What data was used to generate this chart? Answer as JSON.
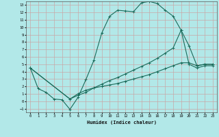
{
  "xlabel": "Humidex (Indice chaleur)",
  "background_color": "#b2e8e8",
  "grid_color": "#c8a8a8",
  "line_color": "#1a6b5a",
  "xlim": [
    -0.5,
    23.5
  ],
  "ylim": [
    -1.5,
    13.5
  ],
  "xticks": [
    0,
    1,
    2,
    3,
    4,
    5,
    6,
    7,
    8,
    9,
    10,
    11,
    12,
    13,
    14,
    15,
    16,
    17,
    18,
    19,
    20,
    21,
    22,
    23
  ],
  "yticks": [
    -1,
    0,
    1,
    2,
    3,
    4,
    5,
    6,
    7,
    8,
    9,
    10,
    11,
    12,
    13
  ],
  "line1_x": [
    0,
    1,
    2,
    3,
    4,
    5,
    6,
    7,
    8,
    9,
    10,
    11,
    12,
    13,
    14,
    15,
    16,
    17,
    18,
    19,
    20,
    21,
    22,
    23
  ],
  "line1_y": [
    4.5,
    1.7,
    1.2,
    0.3,
    0.2,
    -1.1,
    0.5,
    2.9,
    5.5,
    9.2,
    11.5,
    12.3,
    12.2,
    12.1,
    13.3,
    13.5,
    13.2,
    12.3,
    11.5,
    9.6,
    5.0,
    4.5,
    4.8,
    4.8
  ],
  "line2_x": [
    0,
    5,
    6,
    7,
    8,
    9,
    10,
    11,
    12,
    13,
    14,
    15,
    16,
    17,
    18,
    19,
    20,
    21,
    22,
    23
  ],
  "line2_y": [
    4.5,
    0.3,
    1.0,
    1.5,
    1.8,
    2.0,
    2.2,
    2.4,
    2.7,
    3.0,
    3.3,
    3.6,
    4.0,
    4.4,
    4.8,
    5.2,
    5.2,
    4.8,
    5.0,
    5.0
  ],
  "line3_x": [
    0,
    5,
    6,
    7,
    8,
    9,
    10,
    11,
    12,
    13,
    14,
    15,
    16,
    17,
    18,
    19,
    20,
    21,
    22,
    23
  ],
  "line3_y": [
    4.5,
    0.3,
    0.8,
    1.2,
    1.8,
    2.3,
    2.8,
    3.2,
    3.7,
    4.2,
    4.7,
    5.2,
    5.8,
    6.5,
    7.2,
    9.6,
    7.5,
    4.8,
    5.0,
    5.0
  ]
}
